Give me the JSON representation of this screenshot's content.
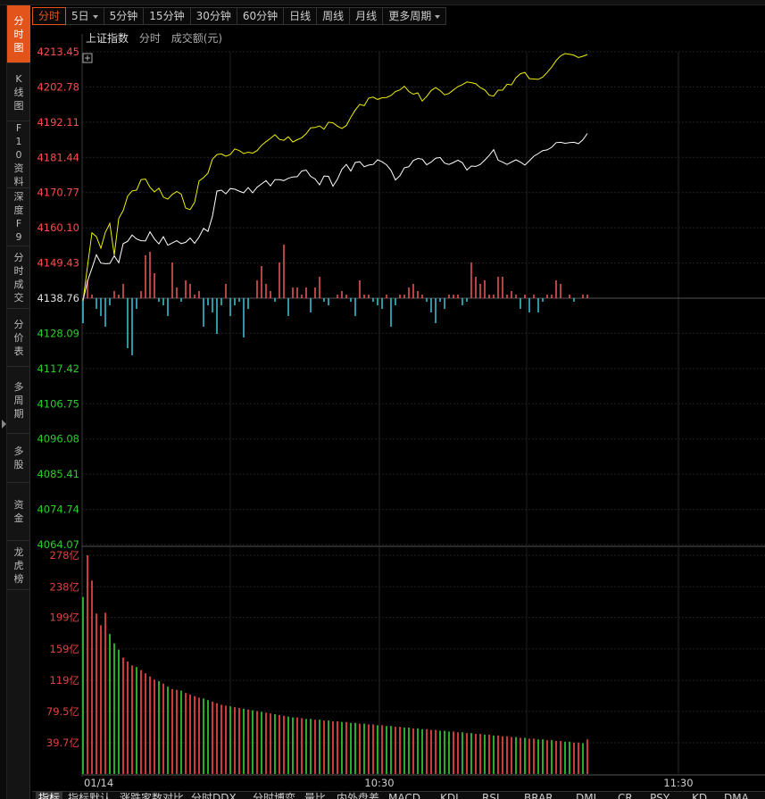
{
  "sidenav": {
    "items": [
      {
        "label": "分时图",
        "active": true
      },
      {
        "label": "K线图",
        "active": false
      },
      {
        "label": "F10资料",
        "active": false
      },
      {
        "label": "深度F9",
        "active": false
      },
      {
        "label": "分时成交",
        "active": false
      },
      {
        "label": "分价表",
        "active": false
      },
      {
        "label": "多周期",
        "active": false
      },
      {
        "label": "多股",
        "active": false
      },
      {
        "label": "资金",
        "active": false
      },
      {
        "label": "龙虎榜",
        "active": false
      }
    ]
  },
  "toolbar": {
    "buttons": [
      {
        "label": "分时",
        "active": true,
        "dropdown": false
      },
      {
        "label": "5日",
        "active": false,
        "dropdown": true
      },
      {
        "label": "5分钟",
        "active": false,
        "dropdown": false
      },
      {
        "label": "15分钟",
        "active": false,
        "dropdown": false
      },
      {
        "label": "30分钟",
        "active": false,
        "dropdown": false
      },
      {
        "label": "60分钟",
        "active": false,
        "dropdown": false
      },
      {
        "label": "日线",
        "active": false,
        "dropdown": false
      },
      {
        "label": "周线",
        "active": false,
        "dropdown": false
      },
      {
        "label": "月线",
        "active": false,
        "dropdown": false
      },
      {
        "label": "更多周期",
        "active": false,
        "dropdown": true
      }
    ]
  },
  "info": {
    "index_name": "上证指数",
    "mode": "分时",
    "volume_label": "成交额(元)"
  },
  "colors": {
    "up": "#ff4c4c",
    "down": "#2ccd2c",
    "neutral": "#dddddd",
    "price_line": "#ffffff",
    "avg_line": "#f0f000",
    "breadth_up": "#ee5a5a",
    "breadth_down": "#3cc8d8",
    "vol_up": "#e34040",
    "vol_down": "#2ec02e",
    "accent": "#e2541a"
  },
  "chart_data": {
    "type": "line",
    "price_axis": {
      "ticks": [
        "4213.45",
        "4202.78",
        "4192.11",
        "4181.44",
        "4170.77",
        "4160.10",
        "4149.43",
        "4138.76",
        "4128.09",
        "4117.42",
        "4106.75",
        "4096.08",
        "4085.41",
        "4074.74",
        "4064.07"
      ],
      "prev_close": 4138.76,
      "ylim": [
        4064.07,
        4213.45
      ]
    },
    "volume_axis": {
      "ticks": [
        "278亿",
        "238亿",
        "199亿",
        "159亿",
        "119亿",
        "79.5亿",
        "39.7亿"
      ],
      "ylim": [
        0,
        278
      ]
    },
    "time_axis": {
      "labels": [
        "01/14",
        "10:30",
        "11:30"
      ],
      "date": "01/14"
    },
    "series": [
      {
        "role": "price",
        "values": [
          4138.0,
          4143.9,
          4147.8,
          4151.9,
          4149.4,
          4149.2,
          4149.3,
          4151.6,
          4149.5,
          4155.3,
          4156.0,
          4157.9,
          4156.7,
          4156.2,
          4156.1,
          4158.9,
          4156.7,
          4155.2,
          4157.4,
          4154.8,
          4155.5,
          4156.2,
          4155.3,
          4155.7,
          4157.0,
          4155.4,
          4157.3,
          4159.9,
          4159.0,
          4163.6,
          4171.2,
          4171.5,
          4170.4,
          4172.0,
          4171.8,
          4171.2,
          4170.7,
          4172.3,
          4170.7,
          4172.4,
          4173.4,
          4174.4,
          4172.8,
          4174.7,
          4174.7,
          4174.4,
          4175.1,
          4175.5,
          4175.6,
          4177.3,
          4177.6,
          4175.7,
          4174.9,
          4173.1,
          4175.8,
          4175.7,
          4172.7,
          4174.8,
          4177.8,
          4179.3,
          4177.3,
          4179.9,
          4180.1,
          4178.6,
          4179.1,
          4179.3,
          4180.7,
          4180.1,
          4179.2,
          4177.5,
          4174.6,
          4175.9,
          4178.3,
          4178.6,
          4180.5,
          4181.1,
          4180.9,
          4179.2,
          4180.0,
          4181.2,
          4181.4,
          4179.7,
          4179.3,
          4179.9,
          4180.6,
          4179.8,
          4177.6,
          4178.8,
          4178.7,
          4179.3,
          4180.6,
          4182.0,
          4183.8,
          4180.6,
          4180.0,
          4179.3,
          4180.0,
          4180.7,
          4180.0,
          4179.1,
          4180.4,
          4181.8,
          4182.6,
          4183.5,
          4183.7,
          4184.5,
          4185.9,
          4186.0,
          4185.7,
          4185.9,
          4186.0,
          4185.6,
          4186.8,
          4188.7
        ]
      },
      {
        "role": "average",
        "values": [
          4138.0,
          4148.4,
          4158.6,
          4157.4,
          4153.9,
          4158.7,
          4161.4,
          4151.8,
          4162.9,
          4165.3,
          4169.7,
          4171.3,
          4171.5,
          4174.7,
          4174.9,
          4172.4,
          4171.0,
          4172.1,
          4169.4,
          4168.8,
          4170.2,
          4171.1,
          4170.3,
          4166.1,
          4165.6,
          4167.8,
          4174.3,
          4175.3,
          4176.7,
          4180.9,
          4182.3,
          4182.5,
          4181.8,
          4182.3,
          4184.0,
          4183.5,
          4182.6,
          4183.0,
          4182.7,
          4183.5,
          4185.1,
          4186.2,
          4187.2,
          4188.3,
          4186.9,
          4186.6,
          4187.7,
          4186.1,
          4186.8,
          4187.4,
          4188.6,
          4190.4,
          4190.5,
          4191.0,
          4190.0,
          4192.1,
          4191.9,
          4190.9,
          4190.2,
          4191.1,
          4193.6,
          4195.8,
          4197.5,
          4197.1,
          4199.4,
          4199.7,
          4199.0,
          4199.5,
          4199.6,
          4200.2,
          4201.4,
          4201.9,
          4203.0,
          4201.4,
          4200.6,
          4201.0,
          4198.5,
          4199.9,
          4201.7,
          4202.6,
          4201.7,
          4200.4,
          4200.8,
          4201.9,
          4202.9,
          4203.5,
          4204.3,
          4204.1,
          4203.8,
          4202.6,
          4201.9,
          4200.3,
          4200.0,
          4201.8,
          4201.8,
          4203.6,
          4203.4,
          4205.6,
          4206.8,
          4207.2,
          4205.3,
          4205.2,
          4205.1,
          4205.8,
          4207.2,
          4208.8,
          4210.8,
          4212.2,
          4212.9,
          4212.7,
          4212.4,
          4211.7,
          4212.1,
          4212.6
        ]
      }
    ],
    "breadth": [
      -7,
      5,
      1,
      -3,
      -5,
      -8,
      -2,
      2,
      1,
      4,
      -14,
      -16,
      -3,
      2,
      12,
      13,
      7,
      -1,
      -2,
      -5,
      10,
      3,
      -1,
      5,
      4,
      1,
      2,
      -8,
      -2,
      -4,
      -10,
      -2,
      4,
      -5,
      -2,
      -1,
      -11,
      -3,
      0,
      5,
      9,
      4,
      2,
      -1,
      10,
      15,
      -5,
      3,
      3,
      1,
      3,
      -4,
      3,
      6,
      -1,
      -2,
      0,
      1,
      2,
      1,
      -1,
      -5,
      5,
      1,
      1,
      -1,
      -2,
      -3,
      1,
      -8,
      -2,
      1,
      1,
      3,
      4,
      2,
      1,
      -1,
      -4,
      -7,
      -1,
      -3,
      1,
      1,
      1,
      -2,
      -1,
      10,
      6,
      4,
      5,
      1,
      1,
      6,
      6,
      1,
      2,
      1,
      -3,
      1,
      -4,
      1,
      -4,
      -1,
      1,
      1,
      5,
      4,
      0,
      1,
      -1,
      0,
      1,
      1
    ],
    "volume": [
      225,
      278,
      246,
      204,
      189,
      205,
      178,
      166,
      158,
      148,
      143,
      138,
      136,
      132,
      128,
      124,
      120,
      118,
      115,
      111,
      108,
      107,
      106,
      103,
      101,
      99,
      97,
      96,
      94,
      92,
      90,
      88,
      87,
      86,
      85,
      84,
      83,
      82,
      81,
      80,
      79,
      78,
      77,
      76,
      75,
      74,
      73,
      72,
      72,
      71,
      70,
      70,
      69,
      69,
      68,
      68,
      67,
      67,
      66,
      66,
      65,
      65,
      64,
      64,
      63,
      63,
      62,
      62,
      61,
      61,
      60,
      60,
      59,
      59,
      58,
      58,
      57,
      57,
      56,
      56,
      55,
      55,
      54,
      54,
      53,
      53,
      52,
      52,
      51,
      51,
      50,
      50,
      49,
      49,
      48,
      48,
      47,
      47,
      46,
      46,
      45,
      45,
      44,
      44,
      43,
      43,
      42,
      42,
      41,
      41,
      40,
      40,
      39,
      44
    ],
    "volume_dir": [
      0,
      1,
      1,
      1,
      1,
      1,
      0,
      0,
      0,
      1,
      1,
      1,
      0,
      1,
      1,
      1,
      1,
      0,
      1,
      0,
      1,
      1,
      0,
      1,
      1,
      1,
      1,
      0,
      0,
      1,
      1,
      1,
      1,
      0,
      1,
      1,
      0,
      1,
      0,
      1,
      0,
      1,
      1,
      0,
      1,
      1,
      0,
      0,
      1,
      1,
      0,
      0,
      1,
      0,
      1,
      0,
      1,
      1,
      0,
      1,
      0,
      0,
      1,
      0,
      1,
      1,
      0,
      1,
      0,
      0,
      1,
      1,
      0,
      0,
      1,
      0,
      0,
      1,
      1,
      1,
      0,
      0,
      0,
      1,
      1,
      0,
      1,
      0,
      1,
      1,
      0,
      1,
      0,
      1,
      1,
      1,
      1,
      0,
      1,
      0,
      1,
      1,
      0,
      0,
      1,
      0,
      1,
      1,
      0,
      0,
      1,
      1,
      0,
      1
    ]
  },
  "bottombar": {
    "tabs": [
      {
        "label": "指标",
        "active": true
      },
      {
        "label": "指标默认",
        "active": false
      },
      {
        "label": "涨跌家数对比",
        "active": false
      },
      {
        "label": "分时DDX",
        "active": false
      },
      {
        "label": "分时博弈",
        "active": false
      },
      {
        "label": "量比",
        "active": false
      },
      {
        "label": "内外盘差",
        "active": false
      },
      {
        "label": "MACD",
        "active": false
      },
      {
        "label": "KDJ",
        "active": false
      },
      {
        "label": "RSI",
        "active": false
      },
      {
        "label": "BRAR",
        "active": false
      },
      {
        "label": "DMI",
        "active": false
      },
      {
        "label": "CR",
        "active": false
      },
      {
        "label": "PSY",
        "active": false
      },
      {
        "label": "KD",
        "active": false
      },
      {
        "label": "DMA",
        "active": false
      }
    ]
  }
}
